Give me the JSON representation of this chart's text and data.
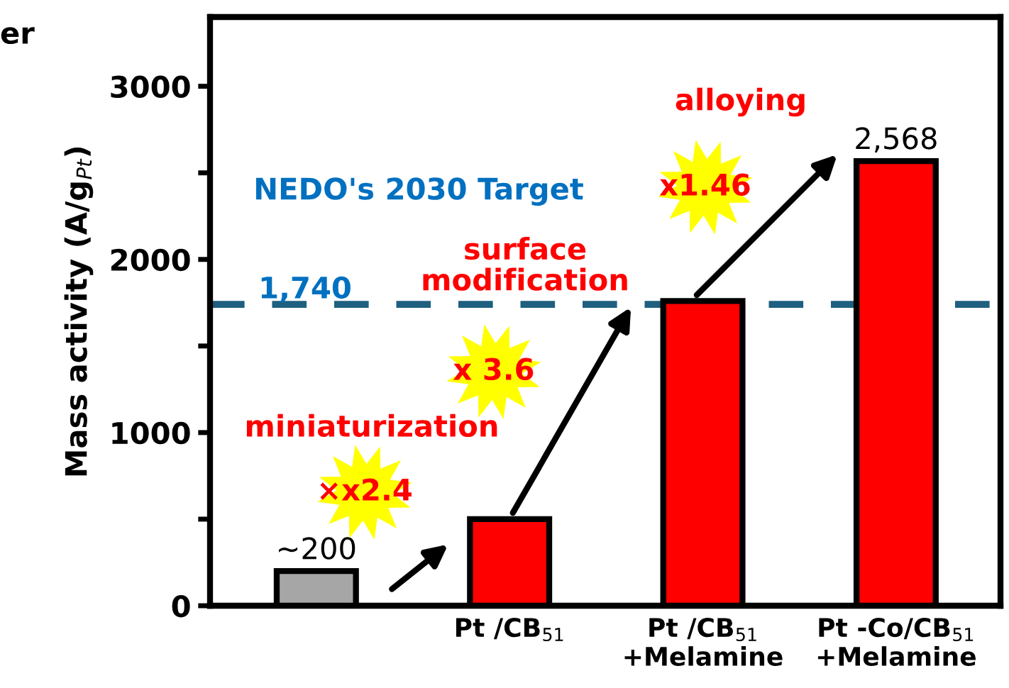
{
  "chart_data": {
    "type": "bar",
    "ylabel": "Mass activity (A/g$_{Pt}$)",
    "categories": [
      null,
      "Pt /CB$_{51}$",
      "Pt /CB$_{51}$\n+Melamine",
      "Pt -Co/CB$_{51}$\n+Melamine"
    ],
    "values": [
      200,
      500,
      1760,
      2568
    ],
    "colors": [
      "#a6a6a6",
      "#ff0000",
      "#ff0000",
      "#ff0000"
    ],
    "value_labels": [
      "~200",
      null,
      null,
      "2,568"
    ],
    "ylim": [
      0,
      3400
    ],
    "yticks": [
      0,
      {
        "value": 500,
        "label": null
      },
      1000,
      {
        "value": 1500,
        "label": null
      },
      2000,
      {
        "value": 2500,
        "label": null
      },
      3000
    ],
    "ref_lines": [
      {
        "axis": "y",
        "value": 1740,
        "label": "1,740",
        "color": "#1f5f7f",
        "line_style": "dashed"
      }
    ],
    "annotations": [
      "NEDO's 2030 Target",
      "miniaturization",
      "surface\nmodification",
      "alloying",
      "×x2.4",
      "x 3.6",
      "x1.46",
      "er"
    ],
    "grid": false,
    "legend": false
  }
}
